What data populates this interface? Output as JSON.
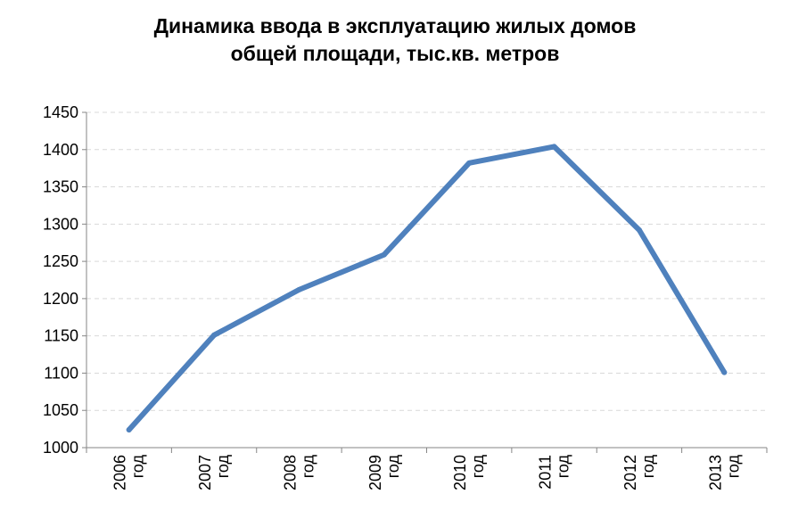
{
  "chart_data": {
    "type": "line",
    "title_lines": [
      "Динамика ввода в эксплуатацию жилых домов",
      "общей площади, тыс.кв. метров"
    ],
    "categories": [
      "2006 год",
      "2007 год",
      "2008 год",
      "2009 год",
      "2010 год",
      "2011 год",
      "2012 год",
      "2013 год"
    ],
    "category_lines": [
      [
        "2006",
        "год"
      ],
      [
        "2007",
        "год"
      ],
      [
        "2008",
        "год"
      ],
      [
        "2009",
        "год"
      ],
      [
        "2010",
        "год"
      ],
      [
        "2011",
        "год"
      ],
      [
        "2012",
        "год"
      ],
      [
        "2013",
        "год"
      ]
    ],
    "values": [
      1024,
      1151,
      1212,
      1259,
      1382,
      1404,
      1292,
      1101
    ],
    "ylim": [
      1000,
      1450
    ],
    "yticks": [
      1000,
      1050,
      1100,
      1150,
      1200,
      1250,
      1300,
      1350,
      1400,
      1450
    ],
    "grid": true,
    "legend": "none",
    "line_color": "#4F81BD"
  }
}
